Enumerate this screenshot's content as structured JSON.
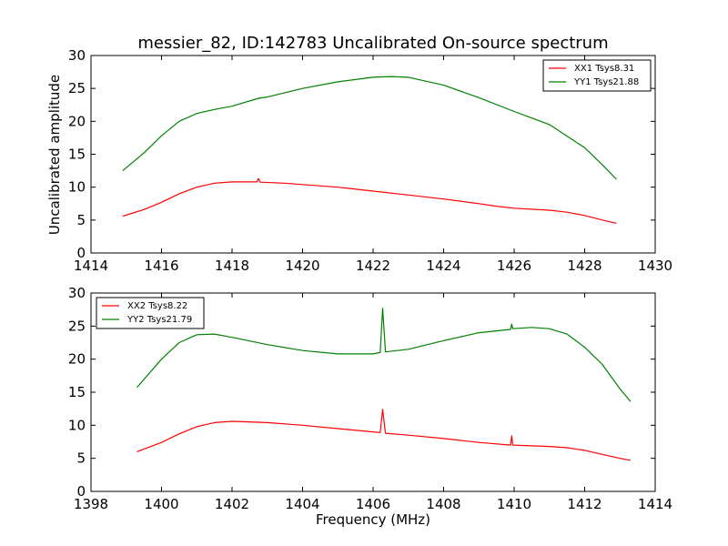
{
  "figure": {
    "title": "messier_82, ID:142783 Uncalibrated On-source spectrum",
    "ylabel": "Uncalibrated amplitude",
    "xlabel": "Frequency (MHz)"
  },
  "chart_data": [
    {
      "type": "line",
      "xlim": [
        1414,
        1430
      ],
      "ylim": [
        0,
        30
      ],
      "xticks": [
        "1414",
        "1416",
        "1418",
        "1420",
        "1422",
        "1424",
        "1426",
        "1428",
        "1430"
      ],
      "yticks": [
        "0",
        "5",
        "10",
        "15",
        "20",
        "25",
        "30"
      ],
      "legend_position": "top-right",
      "series": [
        {
          "name": "XX1 Tsys8.31",
          "color": "#ff0000",
          "points": [
            [
              1414.9,
              5.6
            ],
            [
              1415.5,
              6.6
            ],
            [
              1416,
              7.7
            ],
            [
              1416.5,
              9.0
            ],
            [
              1417,
              10.0
            ],
            [
              1417.5,
              10.6
            ],
            [
              1418,
              10.8
            ],
            [
              1418.7,
              10.8
            ],
            [
              1418.75,
              11.3
            ],
            [
              1418.8,
              10.75
            ],
            [
              1419.5,
              10.6
            ],
            [
              1420,
              10.4
            ],
            [
              1421,
              10.0
            ],
            [
              1422,
              9.4
            ],
            [
              1423,
              8.8
            ],
            [
              1424,
              8.2
            ],
            [
              1425,
              7.5
            ],
            [
              1425.5,
              7.1
            ],
            [
              1426,
              6.8
            ],
            [
              1427,
              6.5
            ],
            [
              1427.5,
              6.2
            ],
            [
              1428,
              5.7
            ],
            [
              1428.5,
              5.0
            ],
            [
              1428.9,
              4.5
            ]
          ]
        },
        {
          "name": "YY1 Tsys21.88",
          "color": "#008000",
          "points": [
            [
              1414.9,
              12.5
            ],
            [
              1415.5,
              15.2
            ],
            [
              1416,
              17.8
            ],
            [
              1416.5,
              20.0
            ],
            [
              1417,
              21.2
            ],
            [
              1417.5,
              21.8
            ],
            [
              1418,
              22.3
            ],
            [
              1418.75,
              23.5
            ],
            [
              1419,
              23.7
            ],
            [
              1420,
              25.0
            ],
            [
              1421,
              26.0
            ],
            [
              1422,
              26.7
            ],
            [
              1422.5,
              26.8
            ],
            [
              1423,
              26.7
            ],
            [
              1424,
              25.5
            ],
            [
              1425,
              23.6
            ],
            [
              1426,
              21.5
            ],
            [
              1427,
              19.5
            ],
            [
              1428,
              16.0
            ],
            [
              1428.5,
              13.4
            ],
            [
              1428.9,
              11.2
            ]
          ]
        }
      ]
    },
    {
      "type": "line",
      "xlim": [
        1398,
        1414
      ],
      "ylim": [
        0,
        30
      ],
      "xticks": [
        "1398",
        "1400",
        "1402",
        "1404",
        "1406",
        "1408",
        "1410",
        "1412",
        "1414"
      ],
      "yticks": [
        "0",
        "5",
        "10",
        "15",
        "20",
        "25",
        "30"
      ],
      "legend_position": "top-left",
      "series": [
        {
          "name": "XX2 Tsys8.22",
          "color": "#ff0000",
          "points": [
            [
              1399.3,
              6.0
            ],
            [
              1400,
              7.4
            ],
            [
              1400.5,
              8.7
            ],
            [
              1401,
              9.8
            ],
            [
              1401.5,
              10.4
            ],
            [
              1402,
              10.6
            ],
            [
              1403,
              10.4
            ],
            [
              1404,
              10.0
            ],
            [
              1405,
              9.5
            ],
            [
              1406,
              9.0
            ],
            [
              1406.2,
              8.9
            ],
            [
              1406.27,
              12.4
            ],
            [
              1406.35,
              8.8
            ],
            [
              1407,
              8.5
            ],
            [
              1408,
              8.0
            ],
            [
              1409,
              7.4
            ],
            [
              1409.9,
              7.0
            ],
            [
              1409.93,
              8.4
            ],
            [
              1409.96,
              7.0
            ],
            [
              1411,
              6.8
            ],
            [
              1411.5,
              6.6
            ],
            [
              1412,
              6.2
            ],
            [
              1412.5,
              5.6
            ],
            [
              1413,
              5.0
            ],
            [
              1413.3,
              4.7
            ]
          ]
        },
        {
          "name": "YY2 Tsys21.79",
          "color": "#008000",
          "points": [
            [
              1399.3,
              15.7
            ],
            [
              1400,
              20.0
            ],
            [
              1400.5,
              22.5
            ],
            [
              1401,
              23.7
            ],
            [
              1401.5,
              23.8
            ],
            [
              1402,
              23.3
            ],
            [
              1403,
              22.2
            ],
            [
              1404,
              21.3
            ],
            [
              1405,
              20.8
            ],
            [
              1406,
              20.8
            ],
            [
              1406.2,
              21.0
            ],
            [
              1406.27,
              27.7
            ],
            [
              1406.35,
              21.1
            ],
            [
              1407,
              21.5
            ],
            [
              1408,
              22.8
            ],
            [
              1409,
              24.0
            ],
            [
              1409.9,
              24.5
            ],
            [
              1409.93,
              25.3
            ],
            [
              1409.96,
              24.6
            ],
            [
              1410.5,
              24.8
            ],
            [
              1411,
              24.6
            ],
            [
              1411.5,
              23.8
            ],
            [
              1412,
              21.8
            ],
            [
              1412.5,
              19.2
            ],
            [
              1413,
              15.5
            ],
            [
              1413.3,
              13.6
            ]
          ]
        }
      ]
    }
  ]
}
